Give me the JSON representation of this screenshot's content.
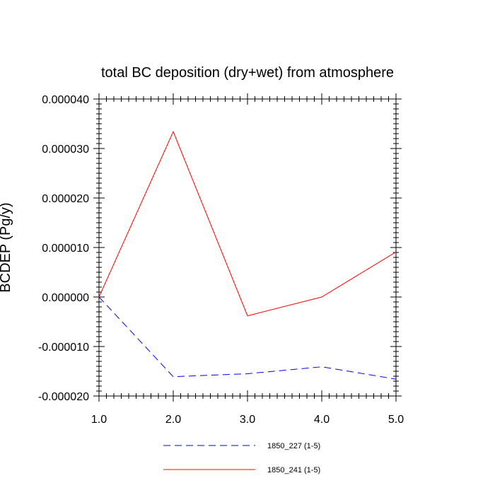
{
  "chart_data": {
    "type": "line",
    "title": "total BC deposition (dry+wet) from atmosphere",
    "xlabel": "",
    "ylabel": "BCDEP (Pg/y)",
    "x": [
      1.0,
      2.0,
      3.0,
      4.0,
      5.0
    ],
    "xlim": [
      1.0,
      5.0
    ],
    "ylim": [
      -2e-05,
      4e-05
    ],
    "x_ticks": [
      "1.0",
      "2.0",
      "3.0",
      "4.0",
      "5.0"
    ],
    "y_ticks": [
      "-0.000020",
      "-0.000010",
      "0.000000",
      "0.000010",
      "0.000020",
      "0.000030",
      "0.000040"
    ],
    "grid": false,
    "legend_position": "bottom",
    "series": [
      {
        "name": "1850_227 (1-5)",
        "values": [
          0.0,
          -1.61e-05,
          -1.55e-05,
          -1.41e-05,
          -1.66e-05
        ],
        "color": "#0000ff",
        "dash": "dashed"
      },
      {
        "name": "1850_241 (1-5)",
        "values": [
          0.0,
          3.34e-05,
          -3.8e-06,
          0.0,
          9.1e-06
        ],
        "color": "#ff0000",
        "dash": "solid"
      }
    ]
  }
}
